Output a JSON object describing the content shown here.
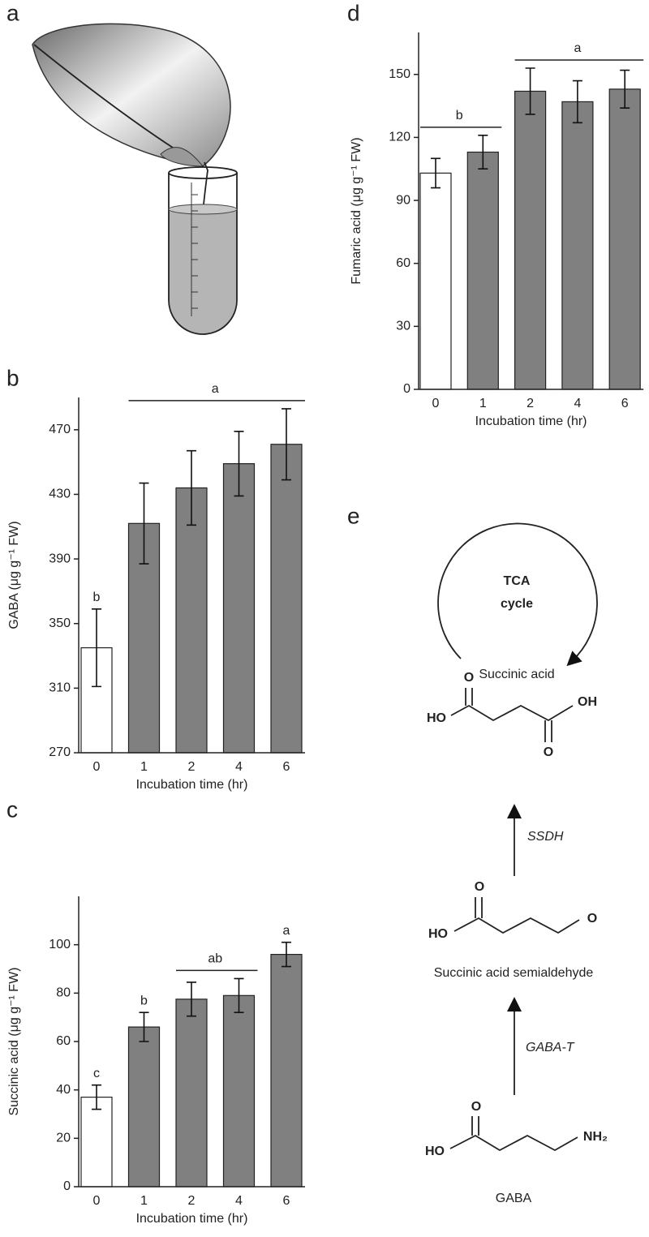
{
  "panels": [
    "a",
    "b",
    "c",
    "d",
    "e"
  ],
  "chart_data": [
    {
      "type": "bar",
      "y_label": "GABA (μg g⁻¹ FW)",
      "x_label": "Incubation time (hr)",
      "categories": [
        "0",
        "1",
        "2",
        "4",
        "6"
      ],
      "values": [
        335,
        412,
        434,
        449,
        461
      ],
      "errors": [
        24,
        25,
        23,
        20,
        22
      ],
      "letters": [
        "b",
        "a",
        "a",
        "a",
        "a"
      ],
      "colors": [
        "#ffffff",
        "#808080",
        "#808080",
        "#808080",
        "#808080"
      ],
      "ylim": [
        270,
        490
      ],
      "yticks": [
        270,
        310,
        350,
        390,
        430,
        470
      ]
    },
    {
      "type": "bar",
      "y_label": "Succinic acid (μg g⁻¹ FW)",
      "x_label": "Incubation time (hr)",
      "categories": [
        "0",
        "1",
        "2",
        "4",
        "6"
      ],
      "values": [
        37,
        66,
        77.5,
        79,
        96
      ],
      "errors": [
        5,
        6,
        7,
        7,
        5
      ],
      "letters": [
        "c",
        "b",
        "ab",
        "ab",
        "a"
      ],
      "colors": [
        "#ffffff",
        "#808080",
        "#808080",
        "#808080",
        "#808080"
      ],
      "ylim": [
        0,
        120
      ],
      "yticks": [
        0,
        20,
        40,
        60,
        80,
        100
      ]
    },
    {
      "type": "bar",
      "y_label": "Fumaric acid (μg g⁻¹ FW)",
      "x_label": "Incubation time (hr)",
      "categories": [
        "0",
        "1",
        "2",
        "4",
        "6"
      ],
      "values": [
        103,
        113,
        142,
        137,
        143
      ],
      "errors": [
        7,
        8,
        11,
        10,
        9
      ],
      "letters": [
        "b",
        "b",
        "a",
        "a",
        "a"
      ],
      "colors": [
        "#ffffff",
        "#808080",
        "#808080",
        "#808080",
        "#808080"
      ],
      "ylim": [
        0,
        170
      ],
      "yticks": [
        0,
        30,
        60,
        90,
        120,
        150
      ]
    }
  ],
  "diagram": {
    "cycle": [
      "TCA",
      "cycle"
    ],
    "compounds": [
      "Succinic acid",
      "Succinic acid semialdehyde",
      "GABA"
    ],
    "enzymes": [
      "SSDH",
      "GABA-T"
    ],
    "atoms": {
      "succinic": [
        "HO",
        "O",
        "OH",
        "O"
      ],
      "semialdehyde": [
        "HO",
        "O",
        "O"
      ],
      "gaba": [
        "HO",
        "O",
        "NH₂"
      ]
    }
  }
}
